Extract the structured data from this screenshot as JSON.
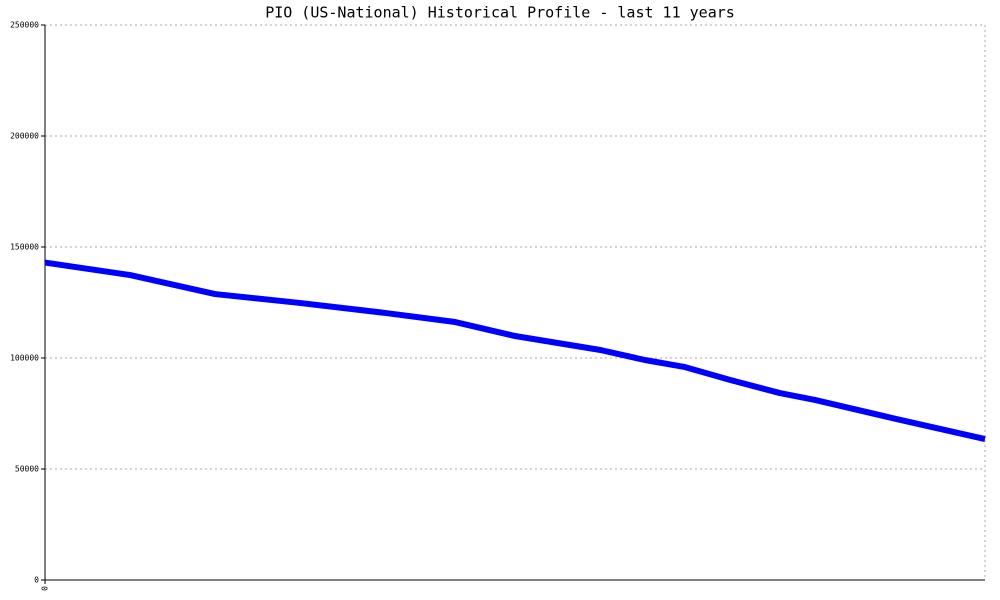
{
  "chart_data": {
    "type": "line",
    "title": "PIO (US-National) Historical Profile - last 11 years",
    "x": [
      0,
      0.99,
      1.99,
      2.98,
      3.98,
      4.8,
      5.5,
      6.5,
      7.02,
      7.49,
      8.02,
      8.6,
      9.01,
      10.01,
      11
    ],
    "series": [
      {
        "color": "#0000ff",
        "values": [
          143000,
          137400,
          128800,
          124800,
          120300,
          116200,
          109900,
          103600,
          99100,
          95900,
          90100,
          84200,
          81100,
          72100,
          63500
        ]
      }
    ],
    "xlim": [
      0,
      11
    ],
    "xticks": [
      0
    ],
    "ylim": [
      0,
      250000
    ],
    "yticks": [
      0,
      50000,
      100000,
      150000,
      200000,
      250000
    ],
    "grid": true
  }
}
